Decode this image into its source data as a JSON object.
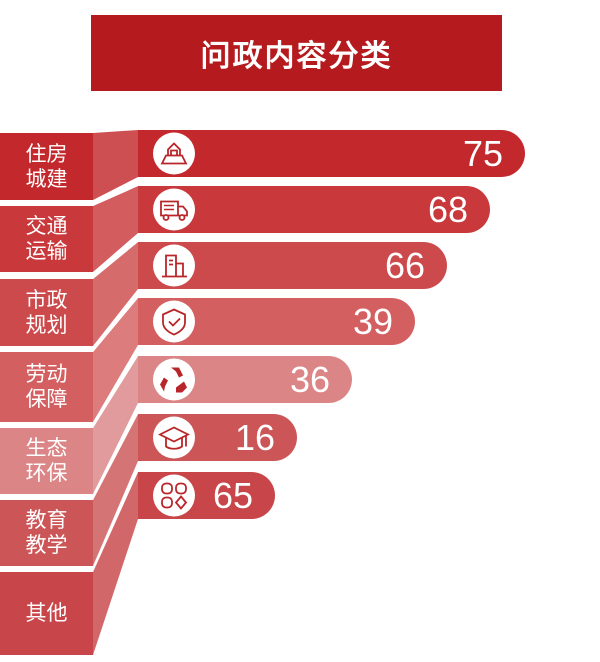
{
  "chart_data": {
    "type": "bar",
    "title": "问政内容分类",
    "orientation": "horizontal",
    "categories": [
      "住房\n城建",
      "交通\n运输",
      "市政\n规划",
      "劳动\n保障",
      "生态\n环保",
      "教育\n教学",
      "其他"
    ],
    "values": [
      75,
      68,
      66,
      39,
      36,
      16,
      65
    ],
    "icons": [
      "house-icon",
      "truck-icon",
      "building-icon",
      "shield-check-icon",
      "recycle-icon",
      "graduation-cap-icon",
      "grid-icon"
    ],
    "colors": [
      "#c3282c",
      "#c9383b",
      "#cd4a4c",
      "#d45f60",
      "#db8587",
      "#cc5557",
      "#c84649"
    ]
  }
}
